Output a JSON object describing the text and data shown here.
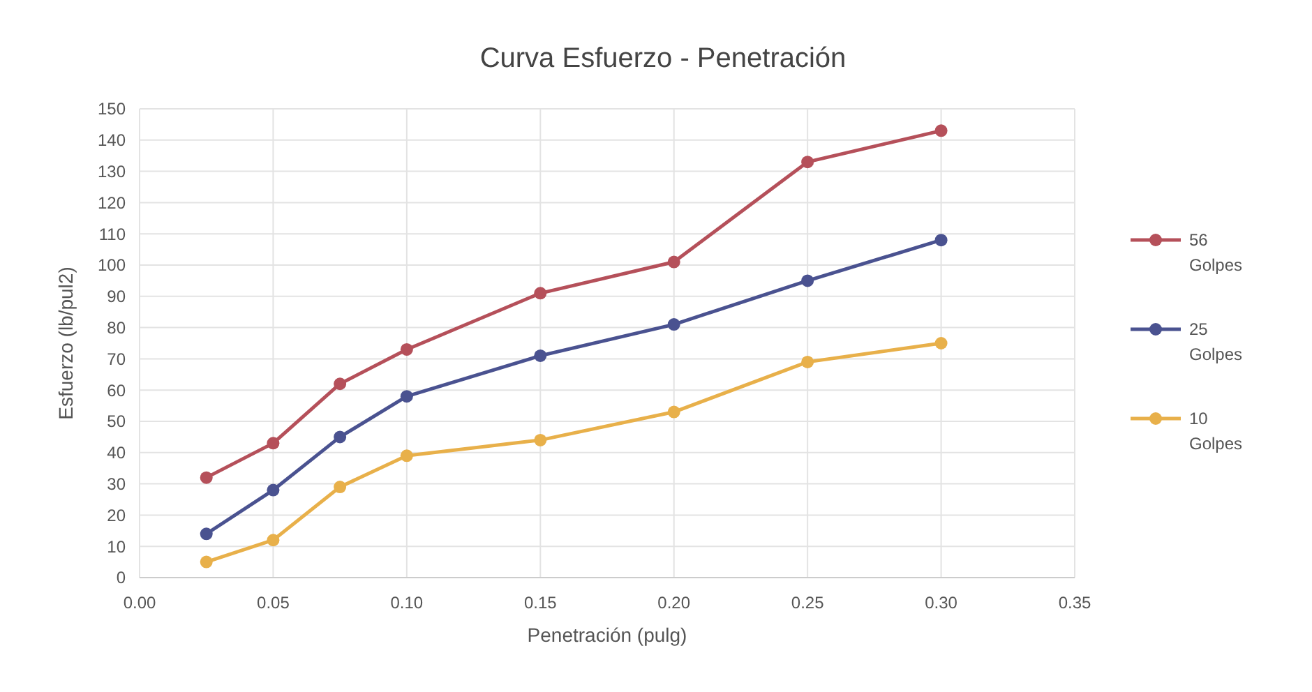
{
  "chart_data": {
    "type": "line",
    "title": "Curva Esfuerzo - Penetración",
    "xlabel": "Penetración (pulg)",
    "ylabel": "Esfuerzo (lb/pul2)",
    "x": [
      0.025,
      0.05,
      0.075,
      0.1,
      0.15,
      0.2,
      0.25,
      0.3
    ],
    "series": [
      {
        "name": "56 Golpes",
        "color": "#b5505a",
        "values": [
          32,
          43,
          62,
          73,
          91,
          101,
          133,
          143
        ]
      },
      {
        "name": "25 Golpes",
        "color": "#4a5290",
        "values": [
          14,
          28,
          45,
          58,
          71,
          81,
          95,
          108
        ]
      },
      {
        "name": "10 Golpes",
        "color": "#e8b04a",
        "values": [
          5,
          12,
          29,
          39,
          44,
          53,
          69,
          75
        ]
      }
    ],
    "xlim": [
      0,
      0.35
    ],
    "xticks": [
      {
        "value": 0,
        "label": "0.00"
      },
      {
        "value": 0.05,
        "label": "0.05"
      },
      {
        "value": 0.1,
        "label": "0.10"
      },
      {
        "value": 0.15,
        "label": "0.15"
      },
      {
        "value": 0.2,
        "label": "0.20"
      },
      {
        "value": 0.25,
        "label": "0.25"
      },
      {
        "value": 0.3,
        "label": "0.30"
      },
      {
        "value": 0.35,
        "label": "0.35"
      }
    ],
    "ylim": [
      0,
      150
    ],
    "yticks": [
      0,
      10,
      20,
      30,
      40,
      50,
      60,
      70,
      80,
      90,
      100,
      110,
      120,
      130,
      140,
      150
    ],
    "grid": true,
    "legend": "right",
    "marker": "circle",
    "line_style": "solid"
  }
}
